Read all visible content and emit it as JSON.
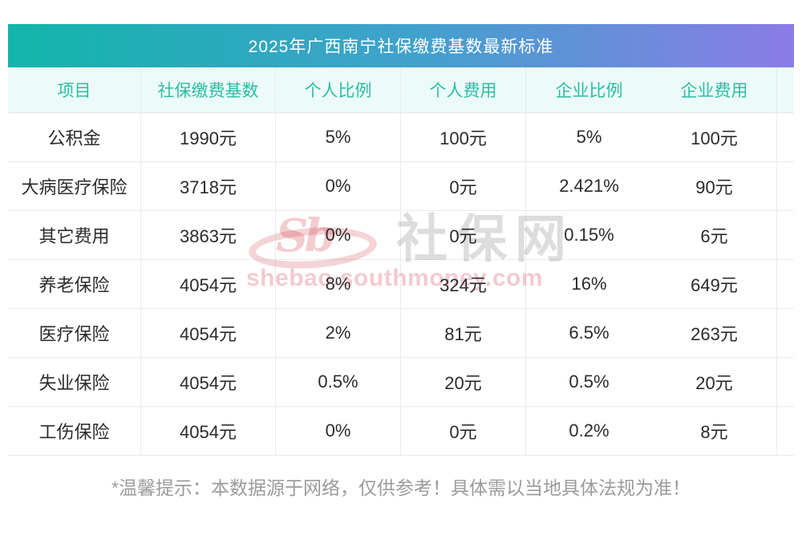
{
  "chart_data": {
    "type": "table",
    "title": "2025年广西南宁社保缴费基数最新标准",
    "columns": [
      "项目",
      "社保缴费基数",
      "个人比例",
      "个人费用",
      "企业比例",
      "企业费用"
    ],
    "rows": [
      [
        "公积金",
        "1990元",
        "5%",
        "100元",
        "5%",
        "100元"
      ],
      [
        "大病医疗保险",
        "3718元",
        "0%",
        "0元",
        "2.421%",
        "90元"
      ],
      [
        "其它费用",
        "3863元",
        "0%",
        "0元",
        "0.15%",
        "6元"
      ],
      [
        "养老保险",
        "4054元",
        "8%",
        "324元",
        "16%",
        "649元"
      ],
      [
        "医疗保险",
        "4054元",
        "2%",
        "81元",
        "6.5%",
        "263元"
      ],
      [
        "失业保险",
        "4054元",
        "0.5%",
        "20元",
        "0.5%",
        "20元"
      ],
      [
        "工伤保险",
        "4054元",
        "0%",
        "0元",
        "0.2%",
        "8元"
      ]
    ]
  },
  "footer": {
    "note": "*温馨提示：本数据源于网络，仅供参考！具体需以当地具体法规为准！"
  },
  "watermark": {
    "logo_text": "Sb",
    "site_name": "社保网",
    "site_url": "shebao.southmoney.com"
  },
  "colors": {
    "banner_gradient_start": "#12b5ab",
    "banner_gradient_mid": "#41a1cd",
    "banner_gradient_end": "#8b7ce6",
    "column_header_bg": "#ecfbf9",
    "column_header_text": "#2abda4",
    "body_text": "#2b2b2b",
    "grid_line": "#e8ebee",
    "footer_text": "#9b9b9b",
    "watermark_red": "#ca2832"
  }
}
